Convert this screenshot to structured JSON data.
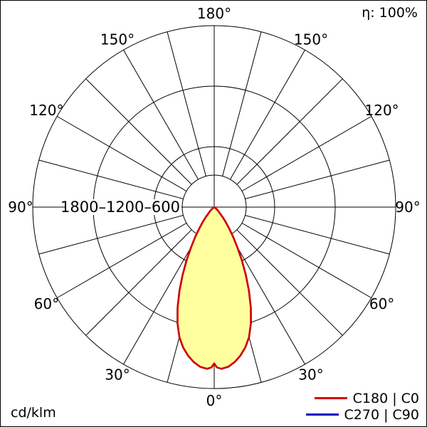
{
  "header": {
    "efficiency": "η: 100%"
  },
  "footer": {
    "unit": "cd/klm"
  },
  "chart_data": {
    "type": "polar",
    "title": "η: 100%",
    "unit": "cd/klm",
    "rmax": 1800,
    "grid_circles": [
      600,
      1200,
      1800
    ],
    "radial_tick_labels": [
      "1800",
      "1200",
      "600"
    ],
    "spoke_step_deg": 15,
    "angle_ticks": [
      {
        "label": "180°",
        "dirs": [
          0
        ]
      },
      {
        "label": "150°",
        "dirs": [
          -30,
          30
        ]
      },
      {
        "label": "120°",
        "dirs": [
          -60,
          60
        ]
      },
      {
        "label": "90°",
        "dirs": [
          -90,
          90
        ]
      },
      {
        "label": "60°",
        "dirs": [
          -120,
          120
        ]
      },
      {
        "label": "30°",
        "dirs": [
          -150,
          150
        ]
      },
      {
        "label": "0°",
        "dirs": [
          180
        ]
      }
    ],
    "series": [
      {
        "name": "C180 | C0",
        "color": "#d40000",
        "fill": "#ffffa0",
        "symmetric": true,
        "gamma_deg": [
          0,
          1,
          2.5,
          5,
          7.5,
          10,
          12.5,
          15,
          17.5,
          20,
          22.5,
          25,
          27.5,
          30,
          32.5,
          35,
          37.5,
          40,
          45,
          50,
          55,
          60
        ],
        "values": [
          1550,
          1590,
          1605,
          1590,
          1550,
          1495,
          1425,
          1335,
          1210,
          1060,
          900,
          740,
          590,
          455,
          345,
          255,
          185,
          130,
          60,
          25,
          8,
          0
        ]
      },
      {
        "name": "C270 | C90",
        "color": "#0000c8",
        "fill": "none",
        "symmetric": true,
        "gamma_deg": [
          0,
          1,
          2.5,
          5,
          7.5,
          10,
          12.5,
          15,
          17.5,
          20,
          22.5,
          25,
          27.5,
          30,
          32.5,
          35,
          37.5,
          40,
          45,
          50,
          55,
          60
        ],
        "values": [
          1550,
          1590,
          1605,
          1590,
          1550,
          1495,
          1425,
          1335,
          1210,
          1060,
          900,
          740,
          590,
          455,
          345,
          255,
          185,
          130,
          60,
          25,
          8,
          0
        ]
      }
    ]
  }
}
